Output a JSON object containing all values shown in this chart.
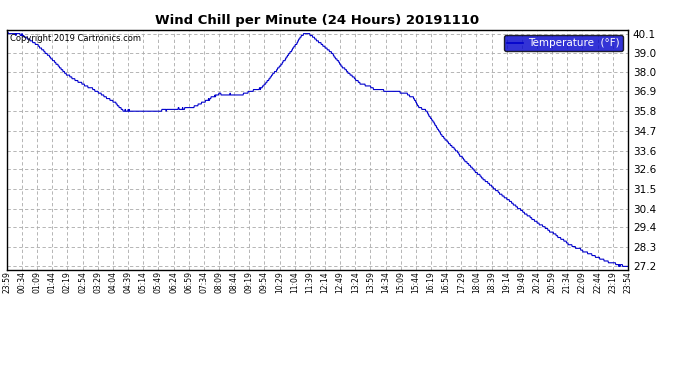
{
  "title": "Wind Chill per Minute (24 Hours) 20191110",
  "copyright_text": "Copyright 2019 Cartronics.com",
  "legend_label": "Temperature  (°F)",
  "legend_bg": "#0000cc",
  "legend_text_color": "#ffffff",
  "line_color": "#0000cc",
  "bg_color": "#ffffff",
  "plot_bg_color": "#ffffff",
  "grid_color": "#aaaaaa",
  "yticks": [
    27.2,
    28.3,
    29.4,
    30.4,
    31.5,
    32.6,
    33.6,
    34.7,
    35.8,
    36.9,
    38.0,
    39.0,
    40.1
  ],
  "ylim": [
    27.0,
    40.3
  ],
  "x_tick_labels": [
    "23:59",
    "00:34",
    "01:09",
    "01:44",
    "02:19",
    "02:54",
    "03:29",
    "04:04",
    "04:39",
    "05:14",
    "05:49",
    "06:24",
    "06:59",
    "07:34",
    "08:09",
    "08:44",
    "09:19",
    "09:54",
    "10:29",
    "11:04",
    "11:39",
    "12:14",
    "12:49",
    "13:24",
    "13:59",
    "14:34",
    "15:09",
    "15:44",
    "16:19",
    "16:54",
    "17:29",
    "18:04",
    "18:39",
    "19:14",
    "19:49",
    "20:24",
    "20:59",
    "21:34",
    "22:09",
    "22:44",
    "23:19",
    "23:54"
  ],
  "keypoints_t": [
    0,
    35,
    70,
    140,
    200,
    250,
    270,
    300,
    360,
    430,
    490,
    540,
    590,
    640,
    685,
    700,
    720,
    750,
    780,
    820,
    860,
    895,
    915,
    940,
    955,
    970,
    1010,
    1060,
    1110,
    1165,
    1225,
    1305,
    1385,
    1425,
    1440
  ],
  "keypoints_v": [
    40.1,
    40.05,
    39.5,
    37.8,
    37.0,
    36.3,
    35.85,
    35.8,
    35.85,
    36.0,
    36.75,
    36.7,
    37.1,
    38.5,
    40.05,
    40.1,
    39.7,
    39.1,
    38.2,
    37.3,
    37.0,
    36.9,
    36.85,
    36.6,
    36.0,
    35.85,
    34.4,
    33.1,
    31.9,
    30.8,
    29.7,
    28.4,
    27.5,
    27.25,
    27.2
  ],
  "figsize": [
    6.9,
    3.75
  ],
  "dpi": 100
}
